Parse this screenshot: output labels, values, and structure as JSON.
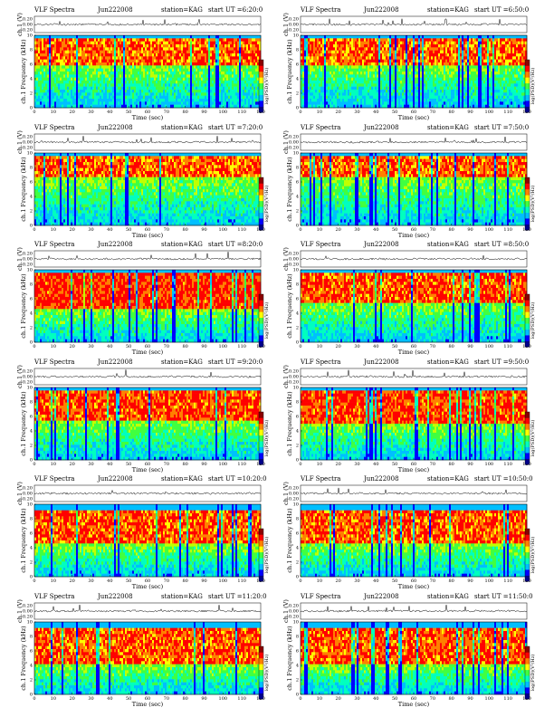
{
  "chart_data": {
    "type": "heatmap",
    "title_prefix": "VLF Spectra",
    "date": "Jun222008",
    "station_label": "station=KAG",
    "start_prefix": "start UT =",
    "amp_ylabel": "ch.1 (V)",
    "amp_ticks": [
      "0.20",
      "0.00",
      "-0.20"
    ],
    "spec_ylabel": "ch.1 Frequency (kHz)",
    "freq_ticks": [
      0,
      2,
      4,
      6,
      8,
      10
    ],
    "xlabel": "Time (sec)",
    "time_ticks": [
      0,
      10,
      20,
      30,
      40,
      50,
      60,
      70,
      80,
      90,
      100,
      110,
      120
    ],
    "xlim": [
      0,
      120
    ],
    "ylim": [
      0,
      10
    ],
    "colorbar_label": "log(PSD)(V²/Hz)",
    "colorbar_colors": [
      "#00008b",
      "#0000ff",
      "#00bfff",
      "#00ffbf",
      "#40ff40",
      "#ffff00",
      "#ff8000",
      "#ff0000",
      "#8b0000"
    ],
    "panels": [
      {
        "start": "6:20:0",
        "band_low_khz": 6.0,
        "band_high_khz": 9.6,
        "intensity": 0.8
      },
      {
        "start": "6:50:0",
        "band_low_khz": 6.0,
        "band_high_khz": 9.6,
        "intensity": 0.8
      },
      {
        "start": "7:20:0",
        "band_low_khz": 6.5,
        "band_high_khz": 9.6,
        "intensity": 0.8
      },
      {
        "start": "7:50:0",
        "band_low_khz": 6.5,
        "band_high_khz": 9.6,
        "intensity": 0.8
      },
      {
        "start": "8:20:0",
        "band_low_khz": 4.5,
        "band_high_khz": 9.6,
        "intensity": 1.0
      },
      {
        "start": "8:50:0",
        "band_low_khz": 5.5,
        "band_high_khz": 9.6,
        "intensity": 0.85
      },
      {
        "start": "9:20:0",
        "band_low_khz": 5.5,
        "band_high_khz": 9.6,
        "intensity": 0.9
      },
      {
        "start": "9:50:0",
        "band_low_khz": 5.0,
        "band_high_khz": 9.6,
        "intensity": 0.95
      },
      {
        "start": "10:20:0",
        "band_low_khz": 4.5,
        "band_high_khz": 9.0,
        "intensity": 0.85
      },
      {
        "start": "10:50:0",
        "band_low_khz": 4.5,
        "band_high_khz": 9.0,
        "intensity": 0.85
      },
      {
        "start": "11:20:0",
        "band_low_khz": 4.0,
        "band_high_khz": 9.0,
        "intensity": 0.85
      },
      {
        "start": "11:50:0",
        "band_low_khz": 4.0,
        "band_high_khz": 9.0,
        "intensity": 0.85
      }
    ]
  }
}
